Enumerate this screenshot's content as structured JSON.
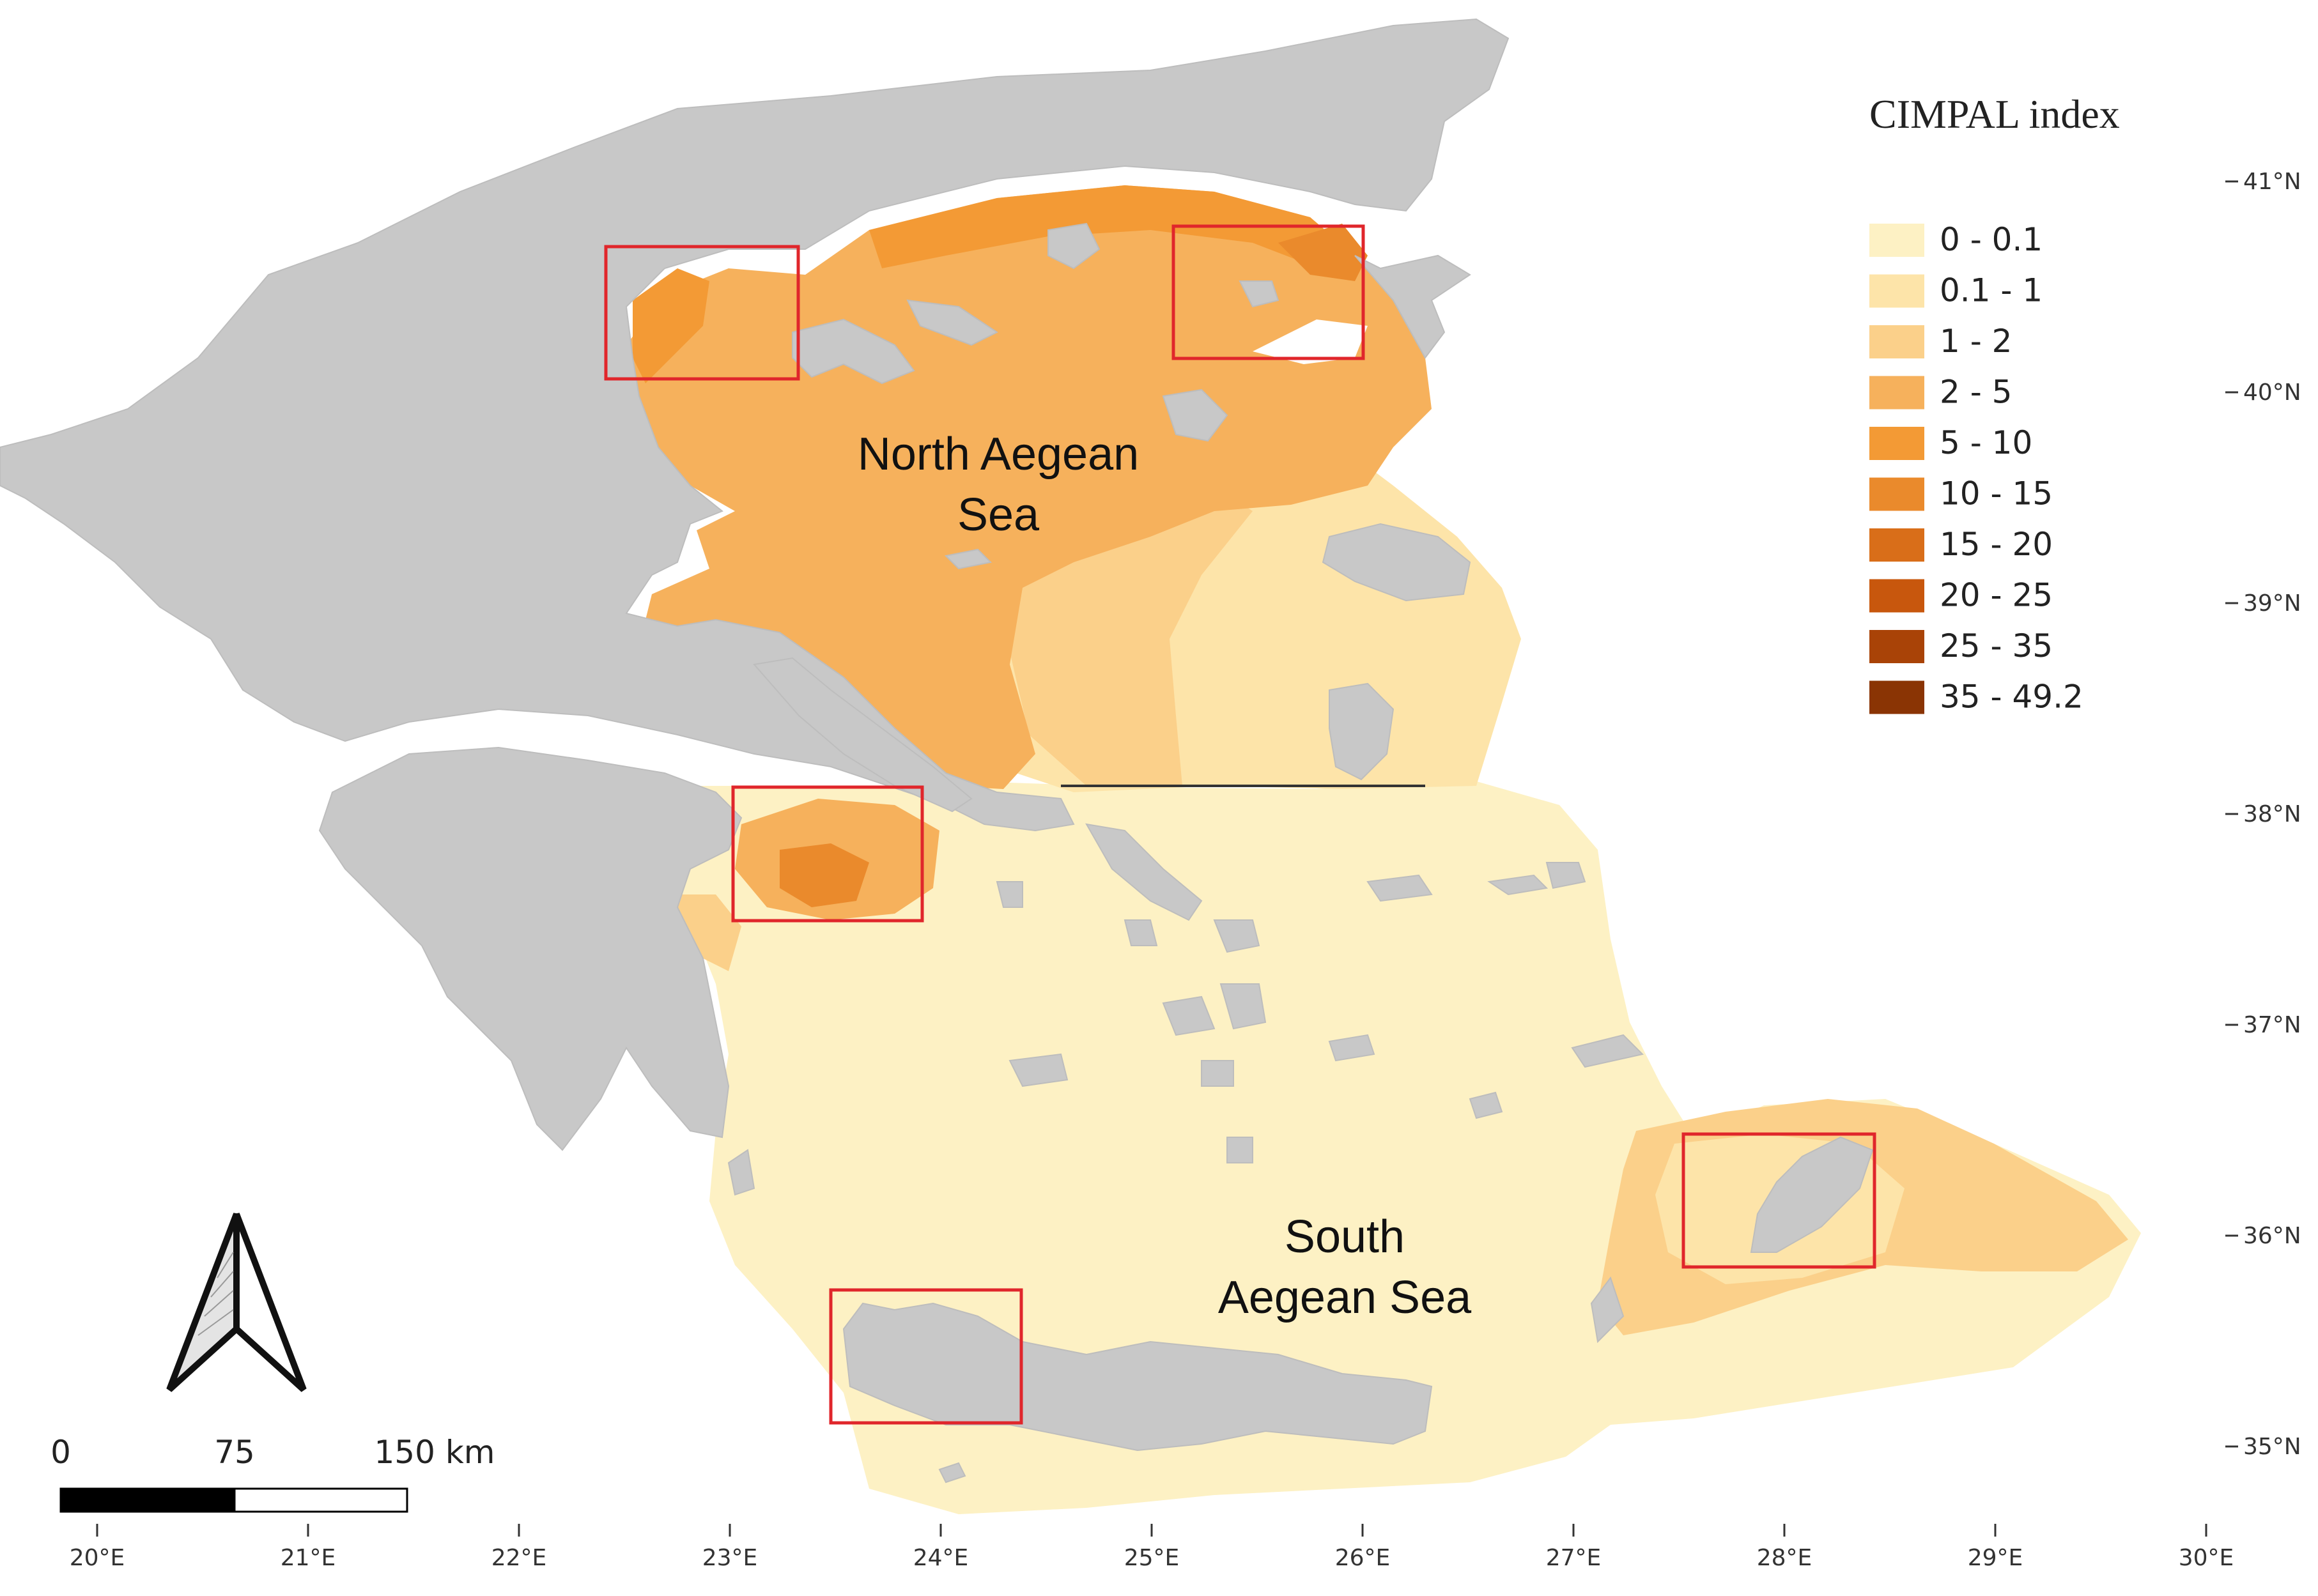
{
  "legend": {
    "title": "CIMPAL index",
    "classes": [
      {
        "label": "0 - 0.1",
        "color": "#fdf1c4"
      },
      {
        "label": "0.1 - 1",
        "color": "#fde4a9"
      },
      {
        "label": "1 - 2",
        "color": "#fbd08a"
      },
      {
        "label": "2 - 5",
        "color": "#f6b15c"
      },
      {
        "label": "5 - 10",
        "color": "#f39a35"
      },
      {
        "label": "10 - 15",
        "color": "#ea8a2c"
      },
      {
        "label": "15 - 20",
        "color": "#d96e19"
      },
      {
        "label": "20 - 25",
        "color": "#c8570d"
      },
      {
        "label": "25 - 35",
        "color": "#a94307"
      },
      {
        "label": "35 - 49.2",
        "color": "#8a3404"
      }
    ]
  },
  "regions": {
    "north": [
      "North Aegean",
      "Sea"
    ],
    "south": [
      "South",
      "Aegean Sea"
    ]
  },
  "axes": {
    "lon": [
      "20°E",
      "21°E",
      "22°E",
      "23°E",
      "24°E",
      "25°E",
      "26°E",
      "27°E",
      "28°E",
      "29°E",
      "30°E"
    ],
    "lat": [
      "41°N",
      "40°N",
      "39°N",
      "38°N",
      "37°N",
      "36°N",
      "35°N"
    ]
  },
  "scale_bar": {
    "labels": [
      "0",
      "75",
      "150 km"
    ]
  },
  "colors": {
    "land": "#c8c8c8",
    "highlight_box": "#e0262b",
    "divider": "#333333"
  },
  "icons": {
    "north_arrow": "north-arrow-icon"
  }
}
